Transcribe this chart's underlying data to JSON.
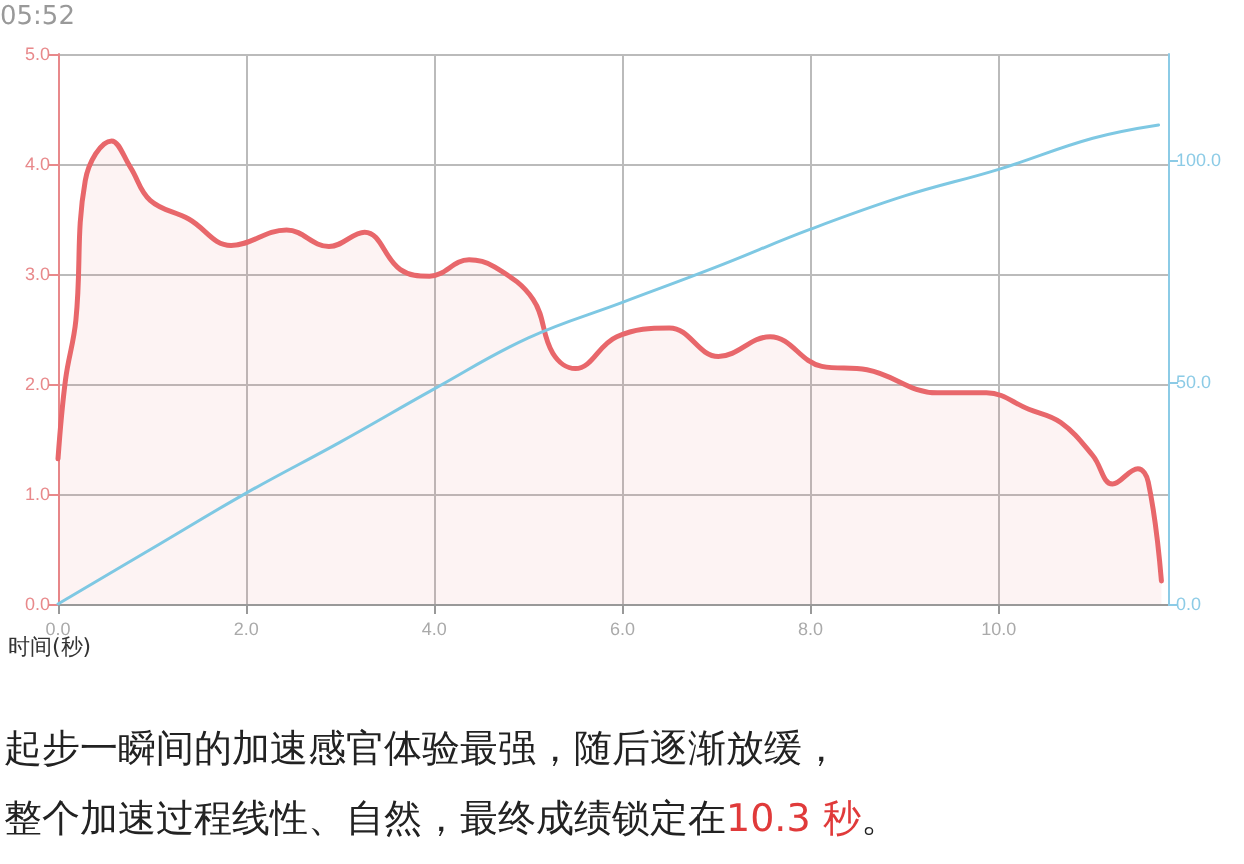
{
  "chart_data": {
    "type": "line",
    "xlabel": "时间(秒)",
    "annotations": [
      "05:52",
      "起步一瞬间的加速感官体验最强，随后逐渐放缓，",
      "整个加速过程线性、自然，最终成绩锁定在",
      "10.3 秒",
      "。"
    ],
    "xlim": [
      0,
      11.8
    ],
    "xticks": [
      {
        "value": 0,
        "label": "0.0"
      },
      {
        "value": 2,
        "label": "2.0"
      },
      {
        "value": 4,
        "label": "4.0"
      },
      {
        "value": 6,
        "label": "6.0"
      },
      {
        "value": 8,
        "label": "8.0"
      },
      {
        "value": 10,
        "label": "10.0"
      }
    ],
    "ylim": [
      0,
      5
    ],
    "yticks": [
      {
        "value": 0,
        "label": "0.0"
      },
      {
        "value": 1,
        "label": "1.0"
      },
      {
        "value": 2,
        "label": "2.0"
      },
      {
        "value": 3,
        "label": "3.0"
      },
      {
        "value": 4,
        "label": "4.0"
      },
      {
        "value": 5,
        "label": "5.0"
      }
    ],
    "y2lim": [
      0,
      124
    ],
    "y2ticks": [
      {
        "value": 0,
        "label": "0.0"
      },
      {
        "value": 50,
        "label": "50.0"
      },
      {
        "value": 100,
        "label": "100.0"
      }
    ],
    "grid": true,
    "marker": "none",
    "line_style": "solid",
    "series": [
      {
        "type": "area",
        "color": "#e8676b",
        "x": [
          0,
          0.08,
          0.19,
          0.29,
          0.57,
          0.77,
          0.98,
          1.39,
          1.84,
          2.43,
          2.88,
          3.26,
          3.64,
          3.95,
          4.37,
          4.63,
          5.05,
          5.26,
          5.5,
          5.94,
          6.5,
          7.02,
          7.57,
          8.12,
          8.6,
          9.35,
          9.87,
          10.32,
          10.66,
          11.0,
          11.21,
          11.48,
          11.59,
          11.73
        ],
        "values": [
          1.32,
          2.04,
          2.58,
          3.85,
          4.21,
          3.97,
          3.67,
          3.5,
          3.26,
          3.4,
          3.25,
          3.38,
          3.04,
          2.98,
          3.13,
          3.07,
          2.77,
          2.28,
          2.14,
          2.43,
          2.51,
          2.25,
          2.43,
          2.16,
          2.13,
          1.92,
          1.92,
          1.77,
          1.65,
          1.35,
          1.09,
          1.23,
          1.11,
          0.21
        ]
      },
      {
        "type": "line",
        "axis": "y2",
        "color": "#7ec8e3",
        "x": [
          0,
          1,
          2,
          3,
          4,
          5,
          6,
          7,
          8,
          9,
          10,
          11,
          11.7
        ],
        "values": [
          0,
          12.5,
          25,
          36.5,
          48.5,
          60,
          68,
          76,
          84.5,
          92,
          98,
          105,
          108
        ]
      }
    ]
  }
}
